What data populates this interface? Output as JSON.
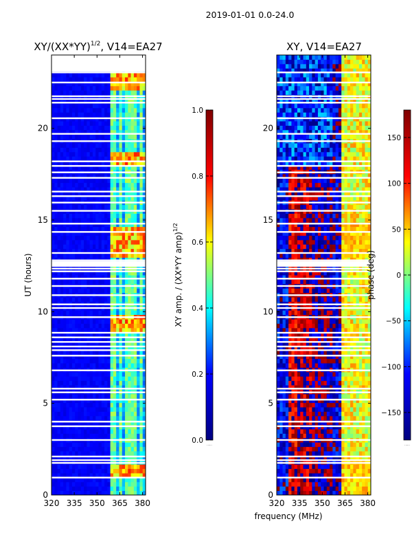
{
  "figure": {
    "suptitle": "2019-01-01 0.0-24.0",
    "shared_xlabel": "frequency (MHz)"
  },
  "colormap": {
    "name": "jet",
    "stops": [
      "#00007f",
      "#0000ff",
      "#00ffff",
      "#ffff00",
      "#ff0000",
      "#7f0000"
    ]
  },
  "chart_data": [
    {
      "type": "heatmap",
      "title_main": "XY/(XX*YY)",
      "title_sup": "1/2",
      "title_rest": ", V14=EA27",
      "xlabel": "",
      "ylabel": "UT (hours)",
      "x_unit": "MHz",
      "xlim": [
        320,
        382
      ],
      "ylim": [
        0,
        24
      ],
      "xticks": [
        320,
        335,
        350,
        365,
        380
      ],
      "yticks": [
        0,
        5,
        10,
        15,
        20
      ],
      "colorbar": {
        "label_main": "XY amp. / (XX*YY amp)",
        "label_sup": "1/2",
        "range": [
          0.0,
          1.0
        ],
        "ticks": [
          "0.0",
          "0.2",
          "0.4",
          "0.6",
          "0.8",
          "1.0"
        ]
      },
      "background_value": 0.12,
      "bright_channel_bands_MHz": [
        [
          359,
          363
        ],
        [
          364,
          367
        ],
        [
          368,
          372
        ],
        [
          373,
          377
        ],
        [
          378,
          381
        ]
      ],
      "bright_periods_UT_hours": [
        [
          1.0,
          1.6
        ],
        [
          13.0,
          14.6
        ],
        [
          9.0,
          9.8
        ],
        [
          18.0,
          18.6
        ],
        [
          22.0,
          23.0
        ]
      ],
      "data_gaps_UT_hours": [
        0.95,
        1.75,
        1.9,
        2.1,
        3.0,
        3.75,
        4.0,
        5.2,
        5.6,
        5.8,
        6.8,
        7.6,
        7.9,
        8.1,
        8.35,
        8.6,
        8.85,
        9.7,
        10.2,
        10.4,
        10.9,
        11.4,
        11.8,
        12.2,
        12.35,
        12.5,
        12.65,
        12.8,
        13.2,
        14.35,
        14.8,
        15.5,
        15.95,
        16.3,
        16.55,
        17.3,
        17.6,
        17.95,
        18.2,
        19.3,
        19.7,
        20.55,
        21.4,
        21.6,
        21.75,
        22.5,
        23.05
      ],
      "no_data_above_UT_hours": 23.1
    },
    {
      "type": "heatmap",
      "title_main": "XY, V14=EA27",
      "xlabel": "frequency (MHz)",
      "ylabel": "",
      "x_unit": "MHz",
      "xlim": [
        320,
        382
      ],
      "ylim": [
        0,
        24
      ],
      "xticks": [
        320,
        335,
        350,
        365,
        380
      ],
      "yticks": [
        0,
        5,
        10,
        15,
        20
      ],
      "colorbar": {
        "label": "phase (deg)",
        "range": [
          -180,
          180
        ],
        "ticks": [
          "−150",
          "−100",
          "−50",
          "0",
          "50",
          "100",
          "150"
        ]
      },
      "phase_bands_MHz": [
        {
          "from": 320,
          "to": 328,
          "typical_phase_deg": -140
        },
        {
          "from": 328,
          "to": 334,
          "typical_phase_deg": 150
        },
        {
          "from": 334,
          "to": 343,
          "typical_phase_deg": 165
        },
        {
          "from": 343,
          "to": 357,
          "typical_phase_deg": -170
        },
        {
          "from": 357,
          "to": 362,
          "typical_phase_deg": -150
        },
        {
          "from": 362,
          "to": 382,
          "typical_phase_deg": 40
        }
      ],
      "data_gaps_UT_hours": [
        0.95,
        1.75,
        1.9,
        2.1,
        3.0,
        3.75,
        4.0,
        5.2,
        5.6,
        5.8,
        6.8,
        7.6,
        7.9,
        8.1,
        8.35,
        8.6,
        8.85,
        9.7,
        10.2,
        10.4,
        10.9,
        11.4,
        11.8,
        12.2,
        12.35,
        12.5,
        12.65,
        12.8,
        13.2,
        14.35,
        14.8,
        15.5,
        15.95,
        16.3,
        16.55,
        17.3,
        17.6,
        17.95,
        18.2,
        19.3,
        19.7,
        20.55,
        21.4,
        21.6,
        21.75,
        22.5,
        23.05
      ],
      "no_data_above_UT_hours": 24.0
    }
  ]
}
